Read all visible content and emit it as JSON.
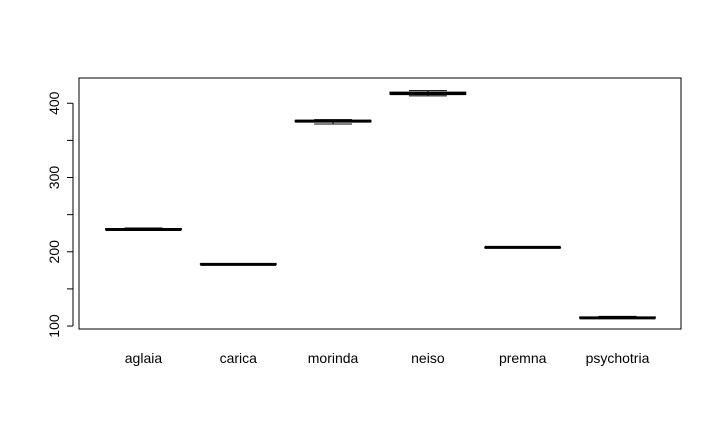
{
  "chart_data": {
    "type": "boxplot",
    "categories": [
      "aglaia",
      "carica",
      "morinda",
      "neiso",
      "premna",
      "psychotria"
    ],
    "boxes": [
      {
        "name": "aglaia",
        "min": 229,
        "q1": 230,
        "median": 230,
        "q3": 231,
        "max": 232
      },
      {
        "name": "carica",
        "min": 183,
        "q1": 183,
        "median": 183,
        "q3": 184,
        "max": 184
      },
      {
        "name": "morinda",
        "min": 372,
        "q1": 375,
        "median": 376,
        "q3": 377,
        "max": 378
      },
      {
        "name": "neiso",
        "min": 410,
        "q1": 412,
        "median": 413,
        "q3": 415,
        "max": 417
      },
      {
        "name": "premna",
        "min": 206,
        "q1": 206,
        "median": 206,
        "q3": 206,
        "max": 206
      },
      {
        "name": "psychotria",
        "min": 111,
        "q1": 111,
        "median": 111,
        "q3": 112,
        "max": 113
      }
    ],
    "yticks": [
      100,
      200,
      300,
      400
    ],
    "ytick_labels": [
      "100",
      "200",
      "300",
      "400"
    ],
    "yminor_ticks": [
      150,
      250,
      350
    ],
    "ylim": [
      96,
      434
    ],
    "title": "",
    "xlabel": "",
    "ylabel": "",
    "grid": false,
    "colors": {
      "box_line": "#000000",
      "box_fill": "#ffffff",
      "frame": "#000000"
    }
  }
}
